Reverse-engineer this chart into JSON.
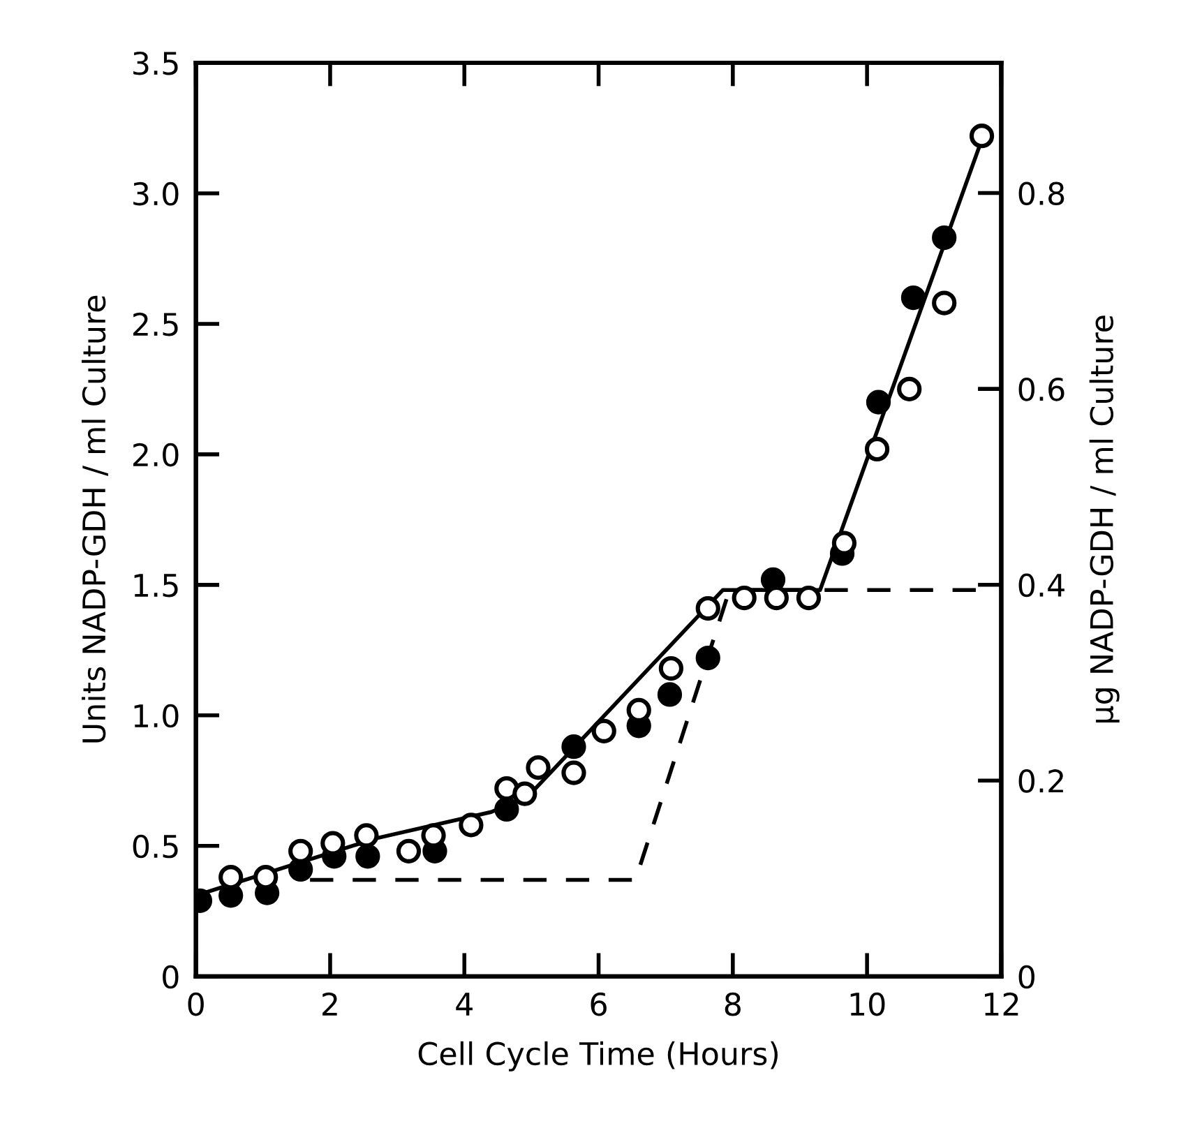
{
  "chart_data": {
    "type": "scatter",
    "xlabel": "Cell Cycle Time (Hours)",
    "ylabel": "Units NADP-GDH / ml Culture",
    "y2label": "µg NADP-GDH / ml Culture",
    "xlim": [
      0,
      12
    ],
    "xticks": [
      0,
      2,
      4,
      6,
      8,
      10,
      12
    ],
    "ylim": [
      0,
      3.5
    ],
    "yticks": [
      0,
      0.5,
      {
        "value": 1,
        "label": "1.0"
      },
      1.5,
      {
        "value": 2,
        "label": "2.0"
      },
      2.5,
      {
        "value": 3,
        "label": "3.0"
      },
      3.5
    ],
    "y2lim": [
      0,
      0.933
    ],
    "y2ticks": [
      0,
      0.2,
      0.4,
      0.6,
      0.8
    ],
    "grid": false,
    "series": [
      {
        "marker": "circle",
        "color": "#000000",
        "x": [
          0.06,
          0.52,
          1.06,
          1.56,
          2.06,
          2.56,
          3.56,
          4.63,
          5.63,
          6.6,
          7.06,
          7.63,
          8.6,
          9.63,
          10.17,
          10.69,
          11.15
        ],
        "values": [
          0.29,
          0.31,
          0.32,
          0.41,
          0.46,
          0.46,
          0.48,
          0.64,
          0.88,
          0.96,
          1.08,
          1.22,
          1.52,
          1.62,
          2.2,
          2.6,
          2.83
        ]
      },
      {
        "marker": "circle",
        "color": "#ffffff",
        "x": [
          0.52,
          1.04,
          1.56,
          2.04,
          2.54,
          3.17,
          3.54,
          4.1,
          4.63,
          4.9,
          5.1,
          5.63,
          6.08,
          6.6,
          7.08,
          7.63,
          8.17,
          8.65,
          9.13,
          9.66,
          10.15,
          10.63,
          11.15,
          11.71
        ],
        "values": [
          0.38,
          0.38,
          0.48,
          0.51,
          0.54,
          0.48,
          0.54,
          0.58,
          0.72,
          0.7,
          0.8,
          0.78,
          0.94,
          1.02,
          1.18,
          1.41,
          1.45,
          1.45,
          1.45,
          1.66,
          2.02,
          2.25,
          2.58,
          3.22
        ]
      },
      {
        "type": "line",
        "color": "#000000",
        "line_style": "solid",
        "x": [
          0,
          2.7,
          4.4,
          4.95,
          7.85,
          9.3,
          11.73
        ],
        "values": [
          0.31,
          0.53,
          0.63,
          0.69,
          1.48,
          1.48,
          3.22
        ]
      },
      {
        "type": "line",
        "color": "#000000",
        "line_style": "dashed",
        "x": [
          1.7,
          6.55,
          7.95,
          11.9
        ],
        "values": [
          0.37,
          0.37,
          1.48,
          1.48
        ]
      }
    ]
  }
}
